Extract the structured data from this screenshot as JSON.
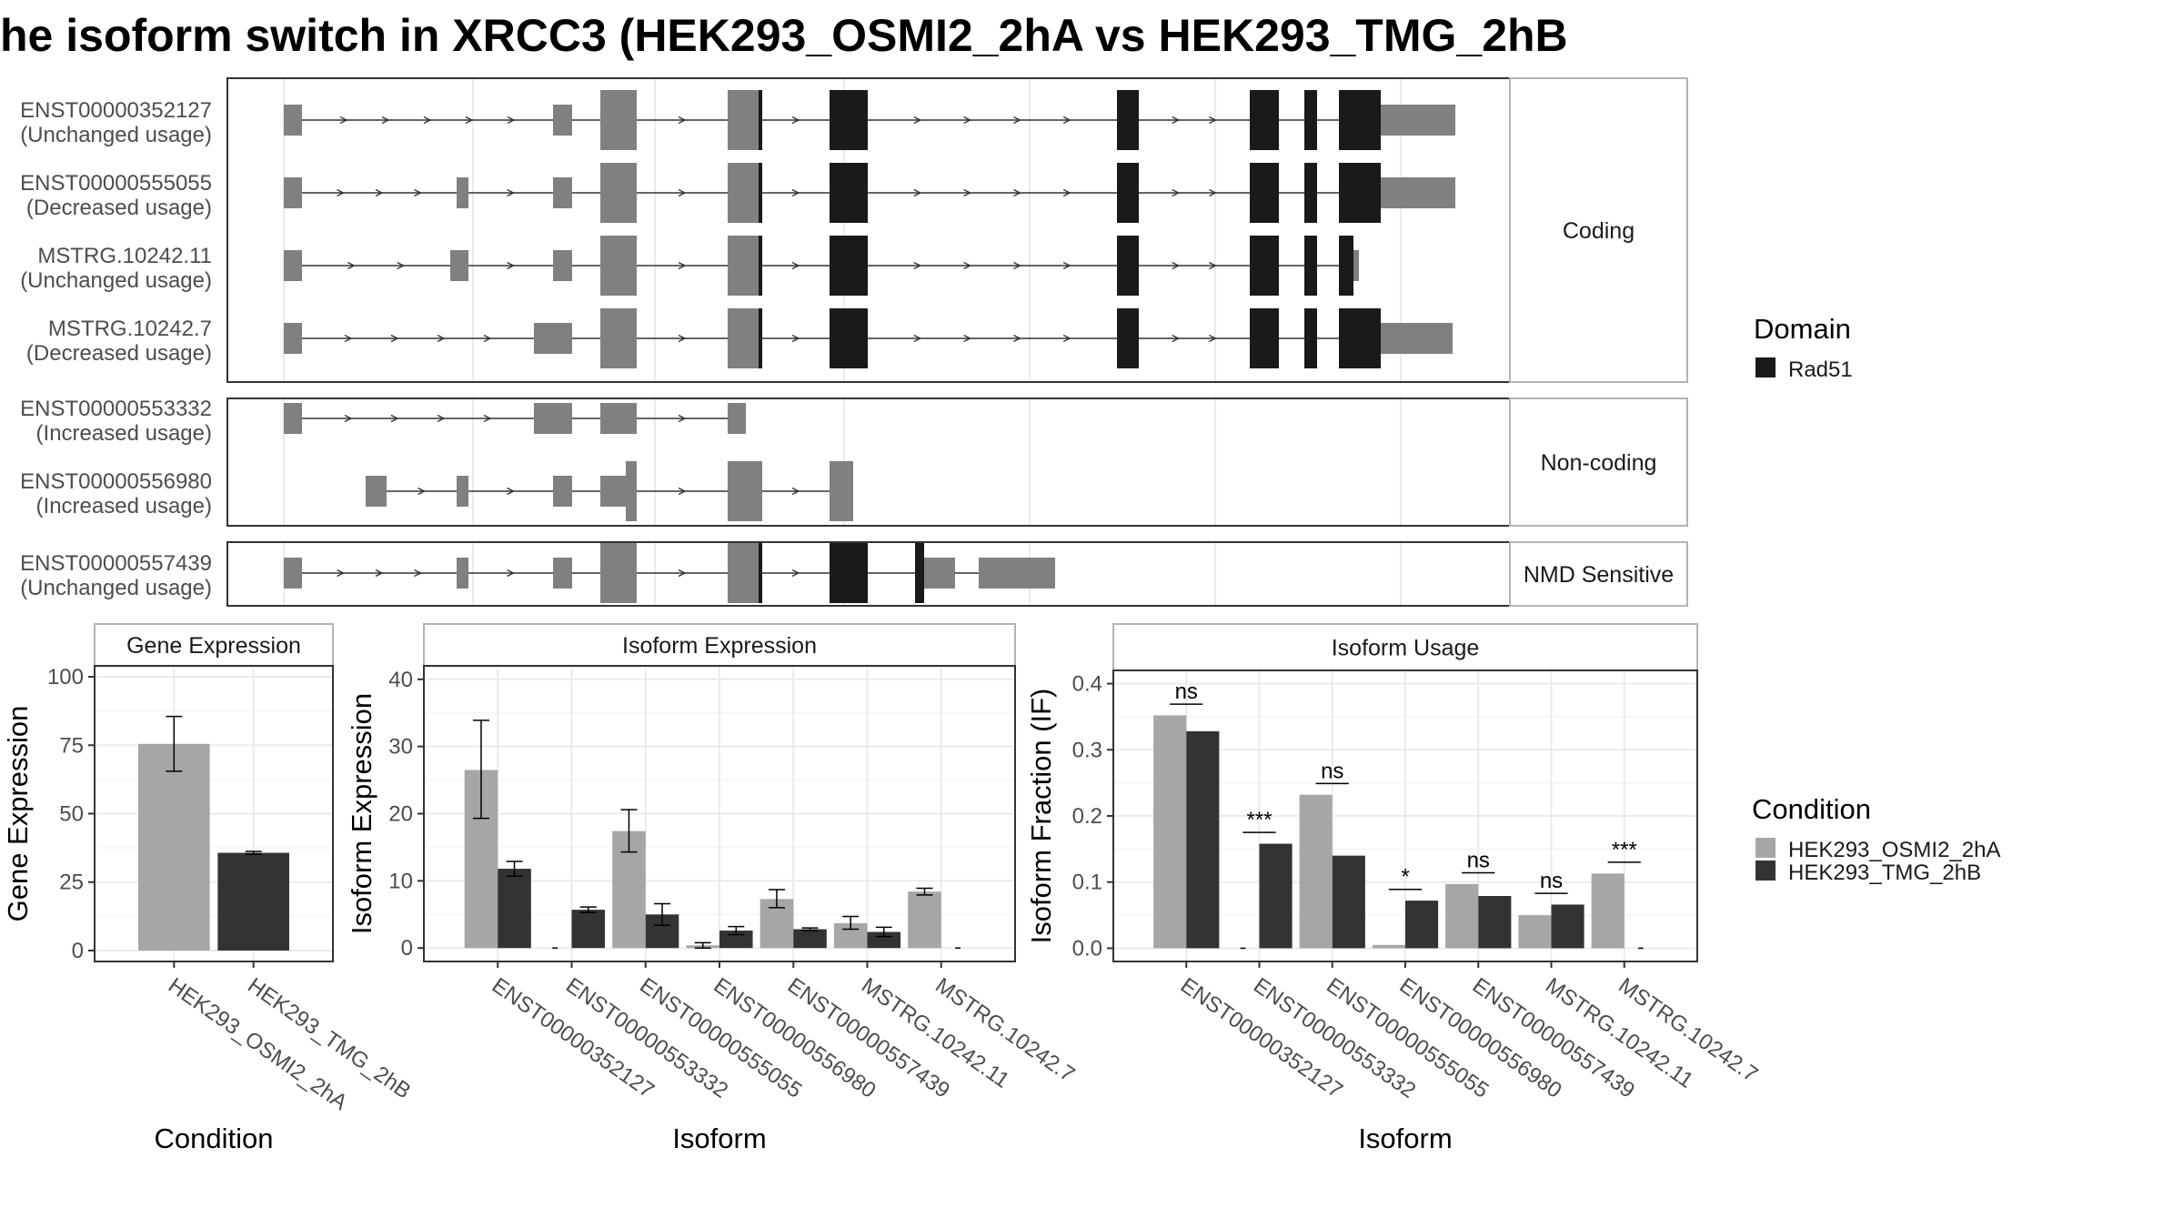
{
  "title": "he isoform switch in XRCC3 (HEK293_OSMI2_2hA vs HEK293_TMG_2hB",
  "colors": {
    "exon_utr": "#808080",
    "domain": "#1a1a1a",
    "condition_a": "#a6a6a6",
    "condition_b": "#333333",
    "panel_border": "#333333",
    "strip_fill": "#ffffff",
    "grid": "#ebebeb"
  },
  "transcript_plot": {
    "panels": [
      {
        "label": "Coding",
        "transcripts": [
          {
            "id": "ENST00000352127",
            "usage": "(Unchanged usage)"
          },
          {
            "id": "ENST00000555055",
            "usage": "(Decreased usage)"
          },
          {
            "id": "MSTRG.10242.11",
            "usage": "(Unchanged usage)"
          },
          {
            "id": "MSTRG.10242.7",
            "usage": "(Decreased usage)"
          }
        ]
      },
      {
        "label": "Non-coding",
        "transcripts": [
          {
            "id": "ENST00000553332",
            "usage": "(Increased usage)"
          },
          {
            "id": "ENST00000556980",
            "usage": "(Increased usage)"
          }
        ]
      },
      {
        "label": "NMD Sensitive",
        "transcripts": [
          {
            "id": "ENST00000557439",
            "usage": "(Unchanged usage)"
          }
        ]
      }
    ],
    "legend": {
      "title": "Domain",
      "items": [
        "Rad51"
      ]
    }
  },
  "chart_data": [
    {
      "type": "bar",
      "panel_title": "Gene Expression",
      "xlabel": "Condition",
      "ylabel": "Gene Expression",
      "categories": [
        "HEK293_OSMI2_2hA",
        "HEK293_TMG_2hB"
      ],
      "values": [
        75.5,
        35.7
      ],
      "error_low": [
        65.5,
        35.2
      ],
      "error_high": [
        85.5,
        36.2
      ],
      "ylim": [
        -4,
        104
      ],
      "yticks": [
        0,
        25,
        50,
        75,
        100
      ],
      "grid": true
    },
    {
      "type": "bar",
      "panel_title": "Isoform Expression",
      "xlabel": "Isoform",
      "ylabel": "Isoform Expression",
      "categories": [
        "ENST00000352127",
        "ENST00000553332",
        "ENST00000555055",
        "ENST00000556980",
        "ENST00000557439",
        "MSTRG.10242.11",
        "MSTRG.10242.7"
      ],
      "series": [
        {
          "name": "HEK293_OSMI2_2hA",
          "values": [
            26.5,
            0,
            17.4,
            0.4,
            7.3,
            3.7,
            8.4
          ],
          "error_low": [
            19.3,
            0,
            14.3,
            0,
            6.0,
            2.8,
            7.9
          ],
          "error_high": [
            33.9,
            0,
            20.6,
            0.8,
            8.7,
            4.7,
            8.9
          ]
        },
        {
          "name": "HEK293_TMG_2hB",
          "values": [
            11.8,
            5.7,
            5.0,
            2.6,
            2.8,
            2.4,
            0
          ],
          "error_low": [
            10.7,
            5.3,
            3.4,
            2.0,
            2.6,
            1.7,
            0
          ],
          "error_high": [
            12.9,
            6.1,
            6.6,
            3.2,
            3.0,
            3.1,
            0
          ]
        }
      ],
      "ylim": [
        -2,
        42
      ],
      "yticks": [
        0,
        10,
        20,
        30,
        40
      ],
      "grid": true
    },
    {
      "type": "bar",
      "panel_title": "Isoform Usage",
      "xlabel": "Isoform",
      "ylabel": "Isoform Fraction (IF)",
      "categories": [
        "ENST00000352127",
        "ENST00000553332",
        "ENST00000555055",
        "ENST00000556980",
        "ENST00000557439",
        "MSTRG.10242.11",
        "MSTRG.10242.7"
      ],
      "series": [
        {
          "name": "HEK293_OSMI2_2hA",
          "values": [
            0.352,
            0.0,
            0.232,
            0.005,
            0.097,
            0.05,
            0.113
          ]
        },
        {
          "name": "HEK293_TMG_2hB",
          "values": [
            0.328,
            0.158,
            0.14,
            0.072,
            0.079,
            0.066,
            0.0
          ]
        }
      ],
      "significance": [
        "ns",
        "***",
        "ns",
        "*",
        "ns",
        "ns",
        "***"
      ],
      "ylim": [
        -0.02,
        0.42
      ],
      "yticks": [
        0.0,
        0.1,
        0.2,
        0.3,
        0.4
      ],
      "ytick_labels": [
        "0.0",
        "0.1",
        "0.2",
        "0.3",
        "0.4"
      ],
      "grid": true
    }
  ],
  "condition_legend": {
    "title": "Condition",
    "items": [
      "HEK293_OSMI2_2hA",
      "HEK293_TMG_2hB"
    ]
  }
}
